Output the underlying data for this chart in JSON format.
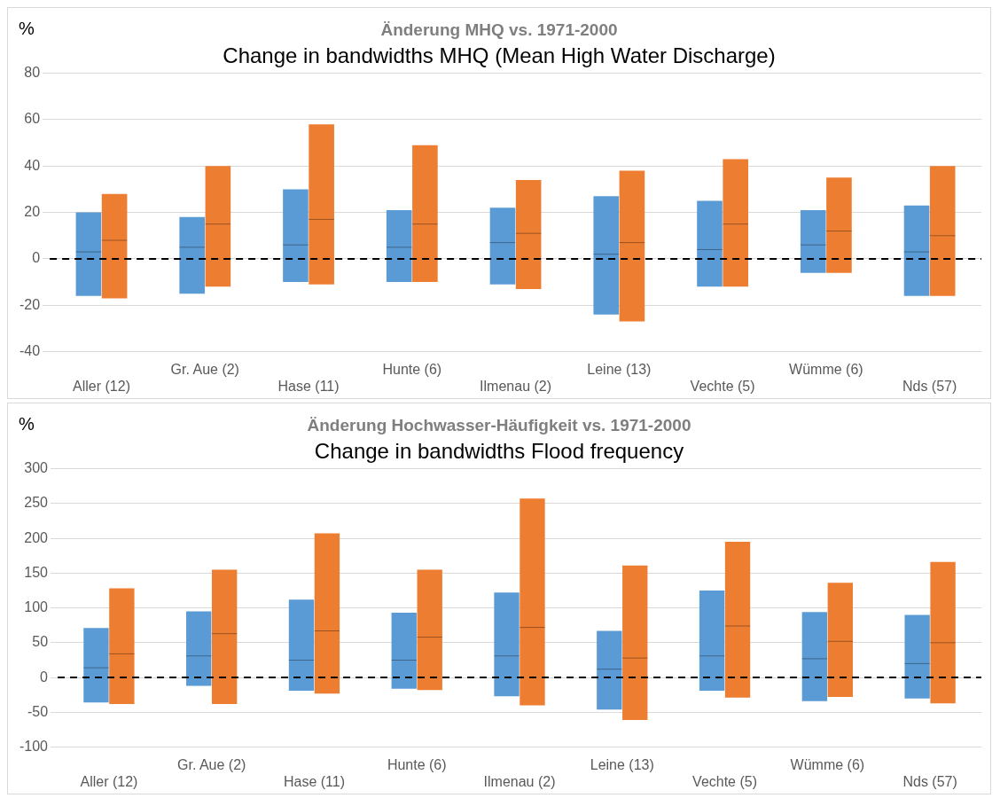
{
  "chart_data": [
    {
      "type": "box",
      "title": "Änderung MHQ vs. 1971-2000",
      "subtitle": "Change in bandwidths MHQ (Mean High Water Discharge)",
      "ylabel": "%",
      "categories": [
        "Aller (12)",
        "Gr. Aue (2)",
        "Hase (11)",
        "Hunte (6)",
        "Ilmenau (2)",
        "Leine (13)",
        "Vechte (5)",
        "Wümme (6)",
        "Nds (57)"
      ],
      "series": [
        {
          "color": "#5b9bd5",
          "boxes": [
            {
              "low": -16,
              "q1": -16,
              "median": 3,
              "q3": 20,
              "high": 20
            },
            {
              "low": -15,
              "q1": -15,
              "median": 5,
              "q3": 18,
              "high": 18
            },
            {
              "low": -10,
              "q1": -10,
              "median": 6,
              "q3": 30,
              "high": 30
            },
            {
              "low": -10,
              "q1": -10,
              "median": 5,
              "q3": 21,
              "high": 21
            },
            {
              "low": -11,
              "q1": -11,
              "median": 7,
              "q3": 22,
              "high": 22
            },
            {
              "low": -24,
              "q1": -24,
              "median": 2,
              "q3": 27,
              "high": 27
            },
            {
              "low": -12,
              "q1": -12,
              "median": 4,
              "q3": 25,
              "high": 25
            },
            {
              "low": -6,
              "q1": -6,
              "median": 6,
              "q3": 21,
              "high": 21
            },
            {
              "low": -16,
              "q1": -16,
              "median": 3,
              "q3": 23,
              "high": 23
            }
          ]
        },
        {
          "color": "#ed7d31",
          "boxes": [
            {
              "low": -17,
              "q1": -17,
              "median": 8,
              "q3": 28,
              "high": 28
            },
            {
              "low": -12,
              "q1": -12,
              "median": 15,
              "q3": 40,
              "high": 40
            },
            {
              "low": -11,
              "q1": -11,
              "median": 17,
              "q3": 58,
              "high": 58
            },
            {
              "low": -10,
              "q1": -10,
              "median": 15,
              "q3": 49,
              "high": 49
            },
            {
              "low": -13,
              "q1": -13,
              "median": 11,
              "q3": 34,
              "high": 34
            },
            {
              "low": -27,
              "q1": -27,
              "median": 7,
              "q3": 38,
              "high": 38
            },
            {
              "low": -12,
              "q1": -12,
              "median": 15,
              "q3": 43,
              "high": 43
            },
            {
              "low": -6,
              "q1": -6,
              "median": 12,
              "q3": 35,
              "high": 35
            },
            {
              "low": -16,
              "q1": -16,
              "median": 10,
              "q3": 40,
              "high": 40
            }
          ]
        }
      ],
      "ylim": [
        -40,
        80
      ],
      "yticks": [
        -40,
        -20,
        0,
        20,
        40,
        60,
        80
      ],
      "grid": "y",
      "ref_lines": [
        {
          "axis": "y",
          "value": 0,
          "color": "#000000",
          "line_style": "dashed"
        }
      ]
    },
    {
      "type": "box",
      "title": "Änderung Hochwasser-Häufigkeit vs. 1971-2000",
      "subtitle": "Change in bandwidths Flood frequency",
      "ylabel": "%",
      "categories": [
        "Aller (12)",
        "Gr. Aue (2)",
        "Hase (11)",
        "Hunte (6)",
        "Ilmenau (2)",
        "Leine (13)",
        "Vechte (5)",
        "Wümme (6)",
        "Nds (57)"
      ],
      "series": [
        {
          "color": "#5b9bd5",
          "boxes": [
            {
              "low": -36,
              "q1": -36,
              "median": 14,
              "q3": 71,
              "high": 71
            },
            {
              "low": -12,
              "q1": -12,
              "median": 31,
              "q3": 95,
              "high": 95
            },
            {
              "low": -19,
              "q1": -19,
              "median": 25,
              "q3": 112,
              "high": 112
            },
            {
              "low": -16,
              "q1": -16,
              "median": 25,
              "q3": 93,
              "high": 93
            },
            {
              "low": -27,
              "q1": -27,
              "median": 31,
              "q3": 122,
              "high": 122
            },
            {
              "low": -46,
              "q1": -46,
              "median": 12,
              "q3": 67,
              "high": 67
            },
            {
              "low": -19,
              "q1": -19,
              "median": 31,
              "q3": 125,
              "high": 125
            },
            {
              "low": -34,
              "q1": -34,
              "median": 27,
              "q3": 94,
              "high": 94
            },
            {
              "low": -30,
              "q1": -30,
              "median": 20,
              "q3": 90,
              "high": 90
            }
          ]
        },
        {
          "color": "#ed7d31",
          "boxes": [
            {
              "low": -38,
              "q1": -38,
              "median": 34,
              "q3": 128,
              "high": 128
            },
            {
              "low": -38,
              "q1": -38,
              "median": 63,
              "q3": 155,
              "high": 155
            },
            {
              "low": -23,
              "q1": -23,
              "median": 67,
              "q3": 207,
              "high": 207
            },
            {
              "low": -18,
              "q1": -18,
              "median": 58,
              "q3": 155,
              "high": 155
            },
            {
              "low": -40,
              "q1": -40,
              "median": 72,
              "q3": 257,
              "high": 257
            },
            {
              "low": -61,
              "q1": -61,
              "median": 28,
              "q3": 161,
              "high": 161
            },
            {
              "low": -29,
              "q1": -29,
              "median": 74,
              "q3": 195,
              "high": 195
            },
            {
              "low": -28,
              "q1": -28,
              "median": 52,
              "q3": 136,
              "high": 136
            },
            {
              "low": -37,
              "q1": -37,
              "median": 50,
              "q3": 166,
              "high": 166
            }
          ]
        }
      ],
      "ylim": [
        -100,
        300
      ],
      "yticks": [
        -100,
        -50,
        0,
        50,
        100,
        150,
        200,
        250,
        300
      ],
      "grid": "y",
      "ref_lines": [
        {
          "axis": "y",
          "value": 0,
          "color": "#000000",
          "line_style": "dashed"
        }
      ]
    }
  ]
}
